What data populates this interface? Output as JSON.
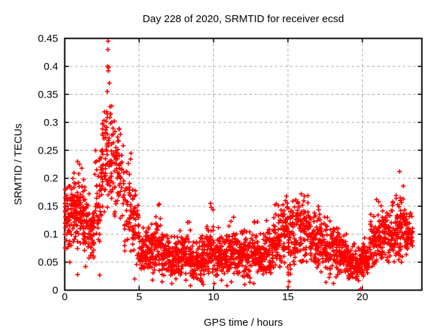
{
  "page": {
    "background": "#ffffff"
  },
  "chart_data": {
    "type": "scatter",
    "title": "Day 228 of 2020, SRMTID for receiver ecsd",
    "xlabel": "GPS time / hours",
    "ylabel": "SRMTID / TECUs",
    "xlim": [
      0,
      24
    ],
    "ylim": [
      0,
      0.45
    ],
    "xticks": [
      0,
      5,
      10,
      15,
      20
    ],
    "yticks": [
      0,
      0.05,
      0.1,
      0.15,
      0.2,
      0.25,
      0.3,
      0.35,
      0.4,
      0.45
    ],
    "grid": "dashed",
    "legend": "none",
    "marker": "plus",
    "marker_color": "#ff0000",
    "grid_color": "#a8a8a8",
    "axis_color": "#000000",
    "series": [
      {
        "name": "SRMTID",
        "points_model": "binned_random",
        "seed": 20200228,
        "bins_format": [
          "t_start_hours",
          "t_end_hours",
          "n_points",
          "y_center",
          "y_sigma",
          "y_min",
          "y_max"
        ],
        "bins": [
          [
            0.0,
            0.5,
            55,
            0.13,
            0.03,
            0.055,
            0.195
          ],
          [
            0.5,
            1.0,
            65,
            0.14,
            0.032,
            0.06,
            0.21
          ],
          [
            1.0,
            1.5,
            65,
            0.125,
            0.03,
            0.06,
            0.2
          ],
          [
            1.5,
            2.0,
            55,
            0.11,
            0.028,
            0.05,
            0.175
          ],
          [
            2.0,
            2.5,
            50,
            0.17,
            0.05,
            0.08,
            0.3
          ],
          [
            2.5,
            3.0,
            55,
            0.235,
            0.05,
            0.14,
            0.335
          ],
          [
            3.0,
            3.5,
            50,
            0.22,
            0.05,
            0.13,
            0.33
          ],
          [
            3.5,
            4.0,
            45,
            0.2,
            0.045,
            0.12,
            0.3
          ],
          [
            4.0,
            4.5,
            45,
            0.15,
            0.045,
            0.06,
            0.25
          ],
          [
            4.5,
            5.0,
            45,
            0.11,
            0.04,
            0.04,
            0.19
          ],
          [
            5.0,
            5.5,
            50,
            0.065,
            0.02,
            0.03,
            0.12
          ],
          [
            5.5,
            6.0,
            50,
            0.07,
            0.025,
            0.03,
            0.13
          ],
          [
            6.0,
            6.5,
            55,
            0.085,
            0.03,
            0.035,
            0.155
          ],
          [
            6.5,
            7.0,
            55,
            0.06,
            0.02,
            0.025,
            0.12
          ],
          [
            7.0,
            7.5,
            55,
            0.055,
            0.018,
            0.02,
            0.1
          ],
          [
            7.5,
            8.0,
            55,
            0.06,
            0.02,
            0.02,
            0.13
          ],
          [
            8.0,
            8.5,
            55,
            0.065,
            0.022,
            0.015,
            0.13
          ],
          [
            8.5,
            9.0,
            55,
            0.05,
            0.017,
            0.015,
            0.09
          ],
          [
            9.0,
            9.5,
            55,
            0.055,
            0.02,
            0.015,
            0.11
          ],
          [
            9.5,
            10.0,
            55,
            0.07,
            0.026,
            0.03,
            0.155
          ],
          [
            10.0,
            10.5,
            55,
            0.06,
            0.02,
            0.02,
            0.12
          ],
          [
            10.5,
            11.0,
            55,
            0.06,
            0.02,
            0.01,
            0.12
          ],
          [
            11.0,
            11.5,
            55,
            0.065,
            0.022,
            0.03,
            0.135
          ],
          [
            11.5,
            12.0,
            55,
            0.06,
            0.02,
            0.02,
            0.11
          ],
          [
            12.0,
            12.5,
            55,
            0.06,
            0.02,
            0.01,
            0.12
          ],
          [
            12.5,
            13.0,
            55,
            0.065,
            0.022,
            0.03,
            0.13
          ],
          [
            13.0,
            13.5,
            55,
            0.06,
            0.02,
            0.025,
            0.11
          ],
          [
            13.5,
            14.0,
            55,
            0.07,
            0.025,
            0.03,
            0.13
          ],
          [
            14.0,
            14.5,
            55,
            0.085,
            0.03,
            0.04,
            0.16
          ],
          [
            14.5,
            15.0,
            60,
            0.095,
            0.03,
            0.04,
            0.16
          ],
          [
            15.0,
            15.5,
            55,
            0.09,
            0.035,
            0.01,
            0.165
          ],
          [
            15.5,
            16.0,
            50,
            0.12,
            0.03,
            0.05,
            0.17
          ],
          [
            16.0,
            16.5,
            50,
            0.115,
            0.03,
            0.05,
            0.17
          ],
          [
            16.5,
            17.0,
            50,
            0.085,
            0.028,
            0.04,
            0.145
          ],
          [
            17.0,
            17.5,
            55,
            0.08,
            0.028,
            0.03,
            0.15
          ],
          [
            17.5,
            18.0,
            55,
            0.075,
            0.025,
            0.02,
            0.13
          ],
          [
            18.0,
            18.5,
            55,
            0.07,
            0.022,
            0.02,
            0.135
          ],
          [
            18.5,
            19.0,
            55,
            0.065,
            0.02,
            0.02,
            0.125
          ],
          [
            19.0,
            19.5,
            55,
            0.05,
            0.018,
            0.02,
            0.09
          ],
          [
            19.5,
            20.0,
            60,
            0.045,
            0.015,
            0.015,
            0.08
          ],
          [
            20.0,
            20.5,
            55,
            0.055,
            0.02,
            0.025,
            0.11
          ],
          [
            20.5,
            21.0,
            55,
            0.08,
            0.03,
            0.04,
            0.15
          ],
          [
            21.0,
            21.5,
            55,
            0.09,
            0.03,
            0.04,
            0.16
          ],
          [
            21.5,
            22.0,
            55,
            0.095,
            0.03,
            0.05,
            0.16
          ],
          [
            22.0,
            22.5,
            55,
            0.105,
            0.032,
            0.05,
            0.17
          ],
          [
            22.5,
            23.0,
            60,
            0.11,
            0.032,
            0.05,
            0.17
          ],
          [
            23.0,
            23.4,
            35,
            0.105,
            0.028,
            0.05,
            0.16
          ]
        ],
        "outliers": [
          [
            0.02,
            0.1
          ],
          [
            0.02,
            0.12
          ],
          [
            0.03,
            0.14
          ],
          [
            0.02,
            0.155
          ],
          [
            0.04,
            0.165
          ],
          [
            0.03,
            0.18
          ],
          [
            0.35,
            0.05
          ],
          [
            0.87,
            0.028
          ],
          [
            1.4,
            0.042
          ],
          [
            2.35,
            0.027
          ],
          [
            0.85,
            0.23
          ],
          [
            1.0,
            0.225
          ],
          [
            1.15,
            0.218
          ],
          [
            0.95,
            0.208
          ],
          [
            2.32,
            0.232
          ],
          [
            2.42,
            0.22
          ],
          [
            2.92,
            0.445
          ],
          [
            2.9,
            0.43
          ],
          [
            2.88,
            0.4
          ],
          [
            2.95,
            0.398
          ],
          [
            2.93,
            0.392
          ],
          [
            3.0,
            0.37
          ],
          [
            2.86,
            0.355
          ],
          [
            3.05,
            0.328
          ],
          [
            3.1,
            0.315
          ],
          [
            2.78,
            0.302
          ],
          [
            3.08,
            0.298
          ],
          [
            4.7,
            0.02
          ],
          [
            5.9,
            0.018
          ],
          [
            6.3,
            0.152
          ],
          [
            6.55,
            0.015
          ],
          [
            7.2,
            0.012
          ],
          [
            8.45,
            0.008
          ],
          [
            9.3,
            0.01
          ],
          [
            9.8,
            0.155
          ],
          [
            9.85,
            0.148
          ],
          [
            10.05,
            0.012
          ],
          [
            10.9,
            0.008
          ],
          [
            11.2,
            0.015
          ],
          [
            12.1,
            0.01
          ],
          [
            12.7,
            0.012
          ],
          [
            14.9,
            0.168
          ],
          [
            15.02,
            0.006
          ],
          [
            15.08,
            0.015
          ],
          [
            15.9,
            0.172
          ],
          [
            16.1,
            0.168
          ],
          [
            17.55,
            0.014
          ],
          [
            18.05,
            0.012
          ],
          [
            19.88,
            0.002
          ],
          [
            20.95,
            0.162
          ],
          [
            21.1,
            0.158
          ],
          [
            22.5,
            0.212
          ],
          [
            22.75,
            0.186
          ],
          [
            22.75,
            0.163
          ]
        ]
      }
    ]
  }
}
